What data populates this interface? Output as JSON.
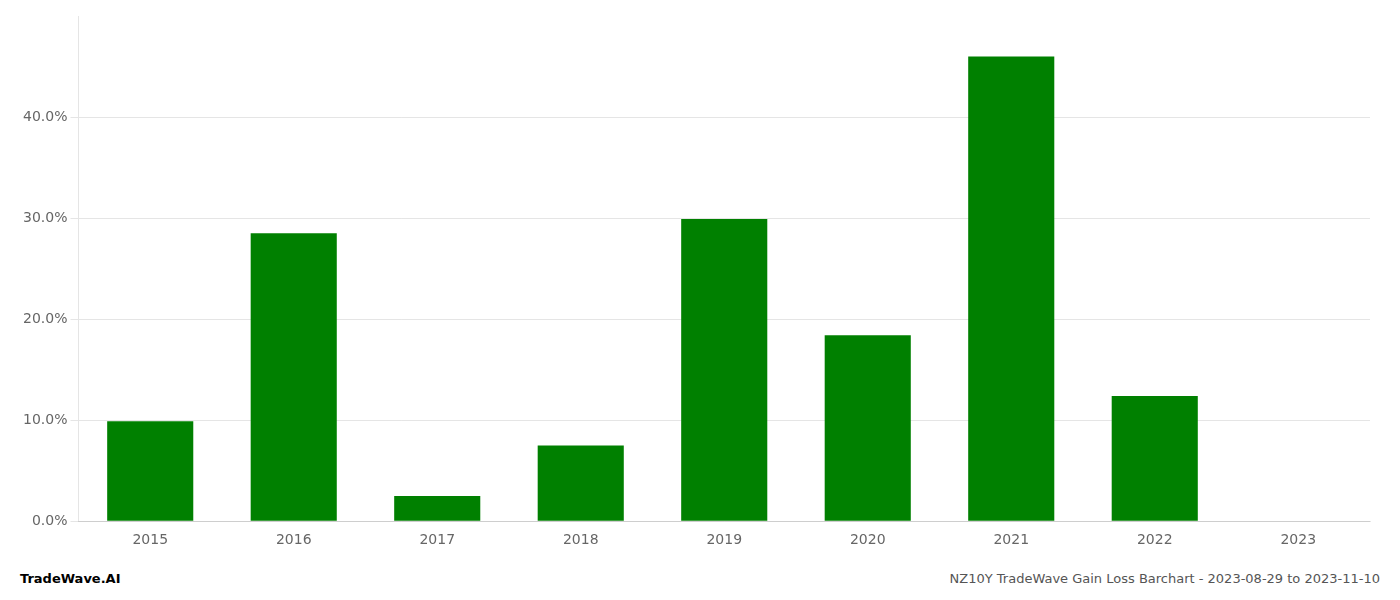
{
  "chart_data": {
    "type": "bar",
    "categories": [
      "2015",
      "2016",
      "2017",
      "2018",
      "2019",
      "2020",
      "2021",
      "2022",
      "2023"
    ],
    "values": [
      0.099,
      0.285,
      0.025,
      0.075,
      0.299,
      0.184,
      0.46,
      0.124,
      0.0
    ],
    "color": "#008000",
    "ylim": [
      0,
      0.5
    ],
    "yticks": [
      {
        "value": 0.0,
        "label": "0.0%"
      },
      {
        "value": 0.1,
        "label": "10.0%"
      },
      {
        "value": 0.2,
        "label": "20.0%"
      },
      {
        "value": 0.3,
        "label": "30.0%"
      },
      {
        "value": 0.4,
        "label": "40.0%"
      }
    ],
    "grid": true,
    "annotations": [
      "TradeWave.AI",
      "NZ10Y TradeWave Gain Loss Barchart - 2023-08-29 to 2023-11-10"
    ]
  }
}
